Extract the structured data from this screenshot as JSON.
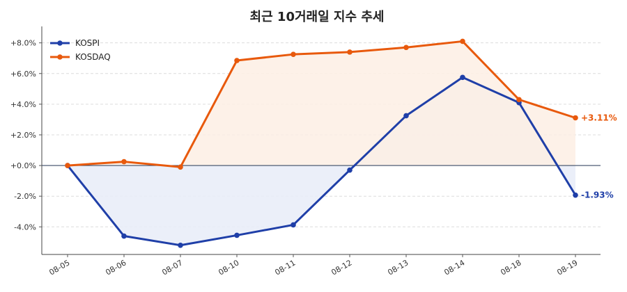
{
  "chart_data": {
    "type": "line",
    "title": "최근 10거래일 지수 추세",
    "categories": [
      "08-05",
      "08-06",
      "08-07",
      "08-10",
      "08-11",
      "08-12",
      "08-13",
      "08-14",
      "08-18",
      "08-19"
    ],
    "ylim": [
      -5.8,
      8.8
    ],
    "yticks": [
      -4,
      -2,
      0,
      2,
      4,
      6,
      8
    ],
    "ytick_labels": [
      "-4.0%",
      "-2.0%",
      "+0.0%",
      "+2.0%",
      "+4.0%",
      "+6.0%",
      "+8.0%"
    ],
    "grid": true,
    "legend_position": "top-left",
    "series": [
      {
        "name": "KOSPI",
        "color": "#1f3fa8",
        "fill": "#e8ecf8",
        "values": [
          0.0,
          -4.6,
          -5.2,
          -4.55,
          -3.87,
          -0.3,
          3.25,
          5.75,
          4.1,
          -1.93
        ],
        "end_label": "-1.93%"
      },
      {
        "name": "KOSDAQ",
        "color": "#e8590c",
        "fill": "#fdeee4",
        "values": [
          0.0,
          0.25,
          -0.1,
          6.85,
          7.25,
          7.4,
          7.7,
          8.1,
          4.3,
          3.11
        ],
        "end_label": "+3.11%"
      }
    ]
  }
}
